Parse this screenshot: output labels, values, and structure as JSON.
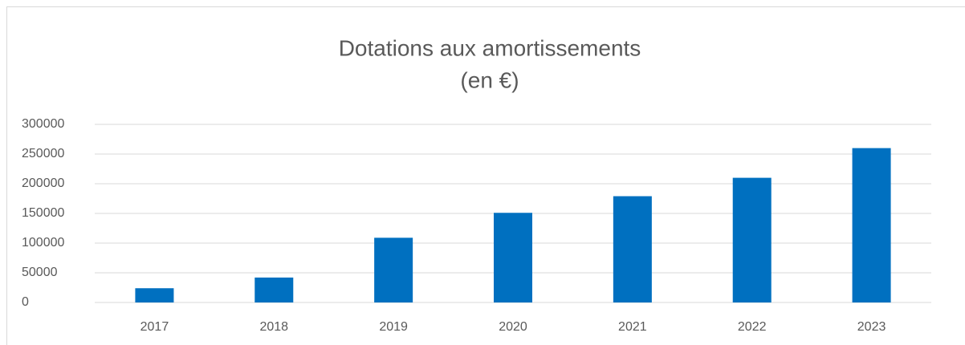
{
  "chart_data": {
    "type": "bar",
    "title": [
      "Dotations aux amortissements",
      "(en €)"
    ],
    "categories": [
      "2017",
      "2018",
      "2019",
      "2020",
      "2021",
      "2022",
      "2023"
    ],
    "values": [
      24000,
      42000,
      109000,
      151000,
      179000,
      210000,
      260000
    ],
    "color": "#0070c0",
    "ylim": [
      0,
      300000
    ],
    "yticks": [
      0,
      50000,
      100000,
      150000,
      200000,
      250000,
      300000
    ],
    "grid": true
  }
}
